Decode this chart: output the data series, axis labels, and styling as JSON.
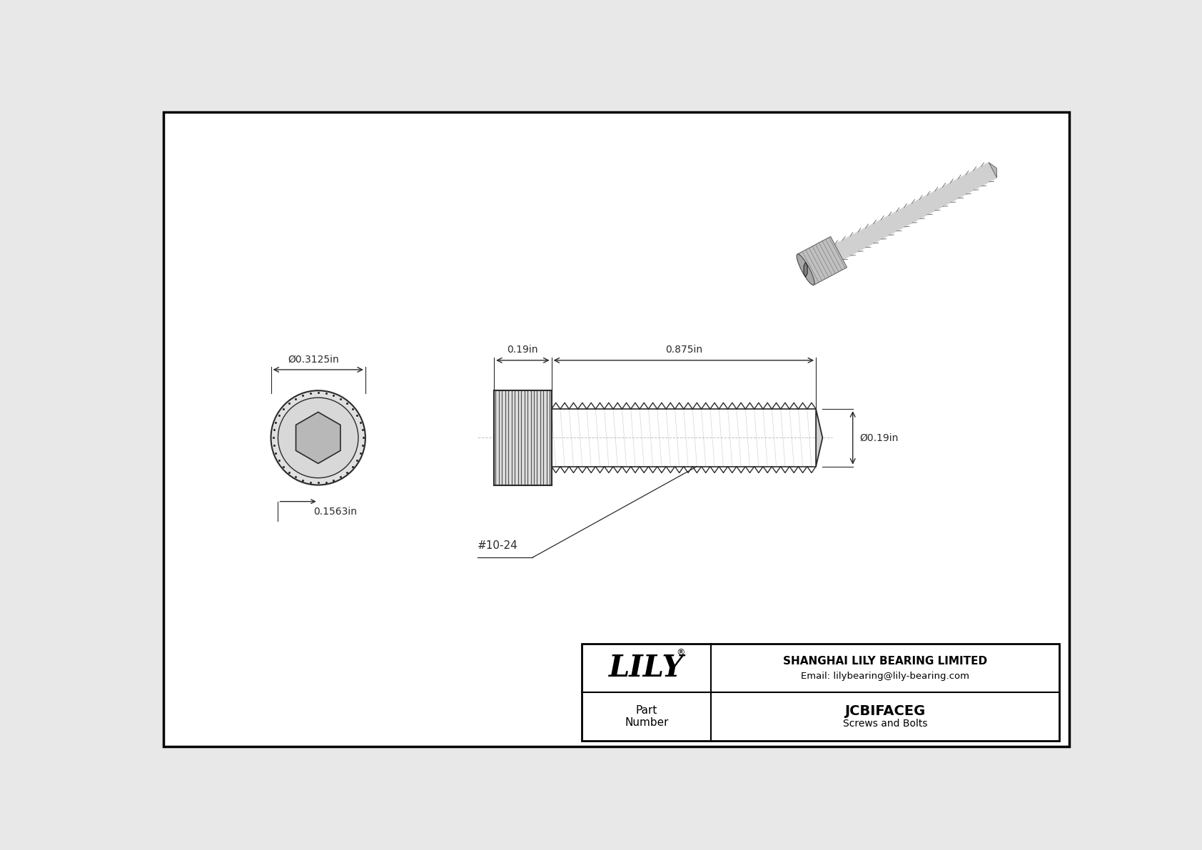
{
  "bg_color": "#e8e8e8",
  "border_color": "#000000",
  "line_color": "#2a2a2a",
  "dim_color": "#2a2a2a",
  "title": "JCBIFACEG",
  "subtitle": "Screws and Bolts",
  "company": "SHANGHAI LILY BEARING LIMITED",
  "email": "Email: lilybearing@lily-bearing.com",
  "part_label": "Part\nNumber",
  "dim_head_diameter": "Ø0.3125in",
  "dim_head_length": "0.19in",
  "dim_shaft_length": "0.875in",
  "dim_shaft_diameter": "Ø0.19in",
  "dim_hex_size": "0.1563in",
  "thread_label": "#10-24",
  "logo_text": "LILY",
  "logo_r": "®",
  "fig_width": 16.84,
  "fig_height": 11.91,
  "dpi": 100
}
